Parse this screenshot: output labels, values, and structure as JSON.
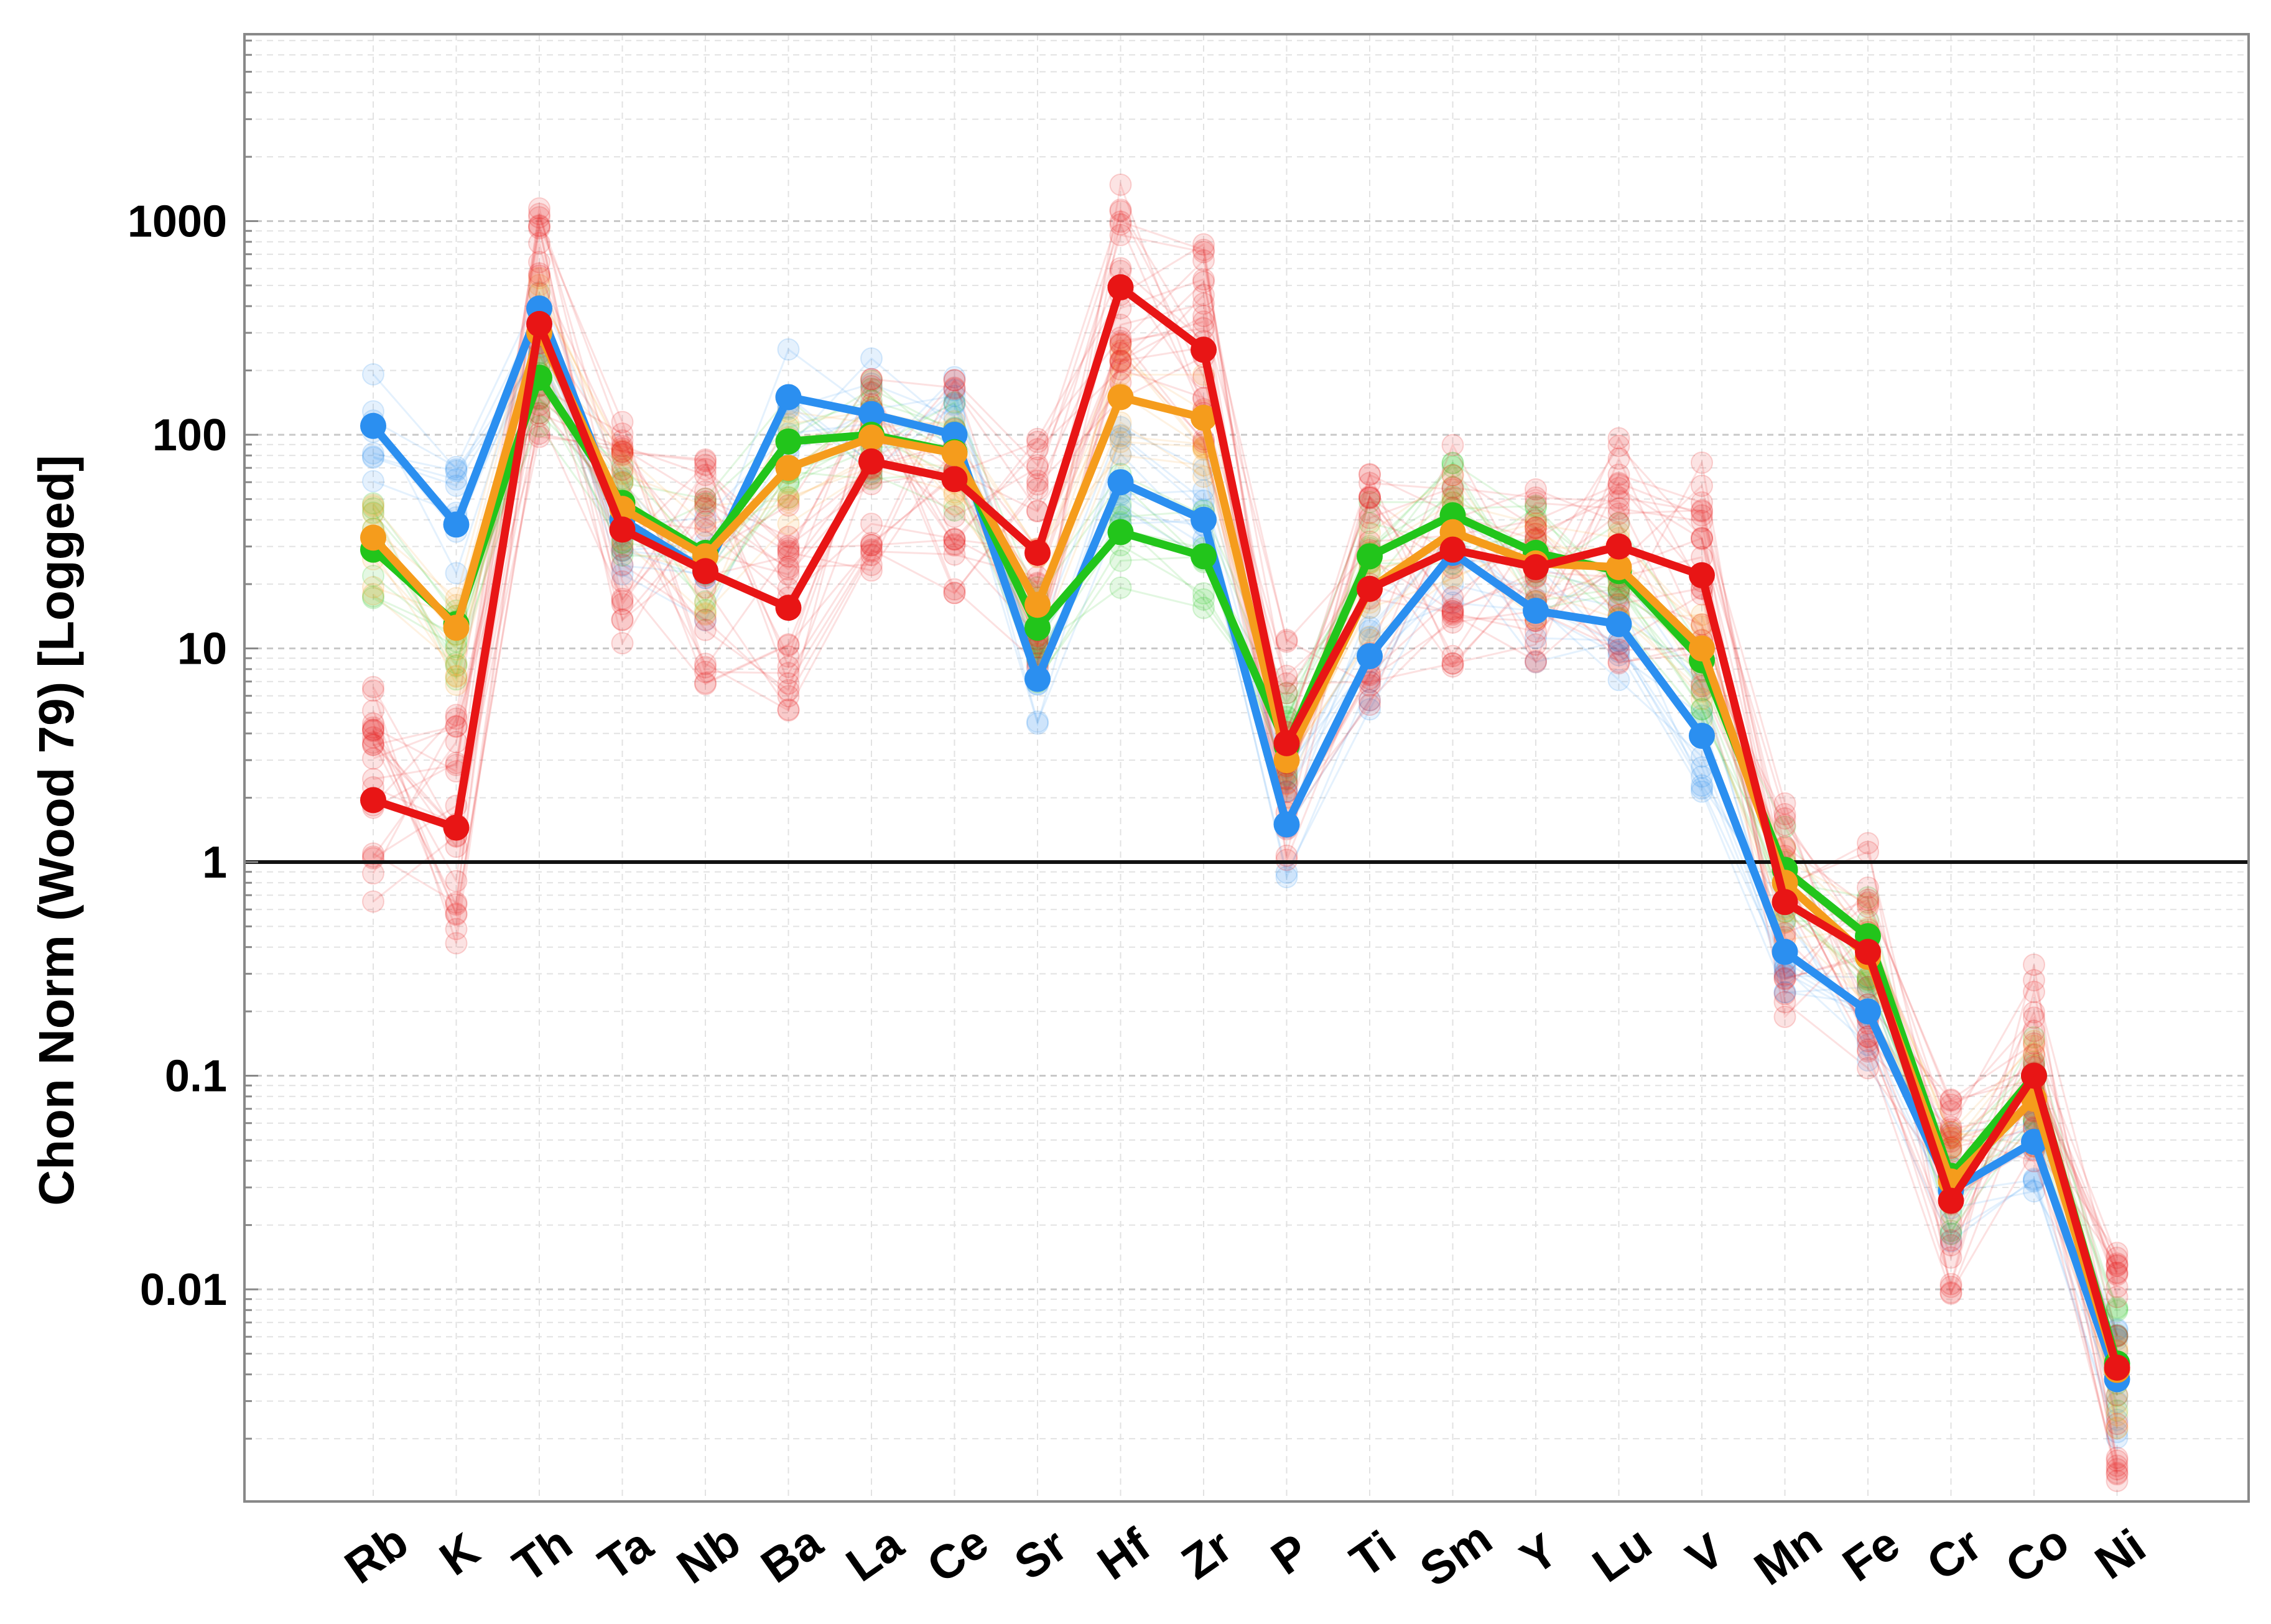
{
  "chart_data": {
    "type": "line",
    "title": "",
    "xlabel": "",
    "ylabel": "Chon Norm (Wood 79) [Logged]",
    "yscale": "log",
    "ylim": [
      0.001,
      10000
    ],
    "ytick_values": [
      0.01,
      0.1,
      1,
      10,
      100,
      1000
    ],
    "ytick_labels": [
      "0.01",
      "0.1",
      "1",
      "10",
      "100",
      "1000"
    ],
    "reference_line": 1,
    "grid": true,
    "legend": "none",
    "categories": [
      "Rb",
      "K",
      "Th",
      "Ta",
      "Nb",
      "Ba",
      "La",
      "Ce",
      "Sr",
      "Hf",
      "Zr",
      "P",
      "Ti",
      "Sm",
      "Y",
      "Lu",
      "V",
      "Mn",
      "Fe",
      "Cr",
      "Co",
      "Ni"
    ],
    "series": [
      {
        "color": "#2b8ff0",
        "values": [
          110,
          38,
          390,
          40,
          23,
          150,
          125,
          100,
          7.2,
          60,
          40,
          1.5,
          9.2,
          28,
          15,
          13,
          3.9,
          0.38,
          0.2,
          0.029,
          0.049,
          0.0038
        ]
      },
      {
        "color": "#22c51b",
        "values": [
          29,
          13,
          185,
          48,
          28,
          93,
          100,
          83,
          12.5,
          35,
          27,
          3.5,
          27,
          42,
          28,
          23,
          8.8,
          0.92,
          0.45,
          0.034,
          0.1,
          0.0045
        ]
      },
      {
        "color": "#f59c1c",
        "values": [
          33,
          12.5,
          300,
          45,
          27,
          70,
          97,
          82,
          16,
          150,
          120,
          3.0,
          19,
          35,
          25,
          24,
          10,
          0.8,
          0.36,
          0.032,
          0.078,
          0.0042
        ]
      },
      {
        "color": "#e81515",
        "values": [
          1.95,
          1.45,
          330,
          36,
          23,
          15.5,
          75,
          62,
          28,
          490,
          250,
          3.6,
          19,
          29,
          24,
          30,
          22,
          0.65,
          0.38,
          0.026,
          0.1,
          0.0043
        ]
      }
    ]
  }
}
